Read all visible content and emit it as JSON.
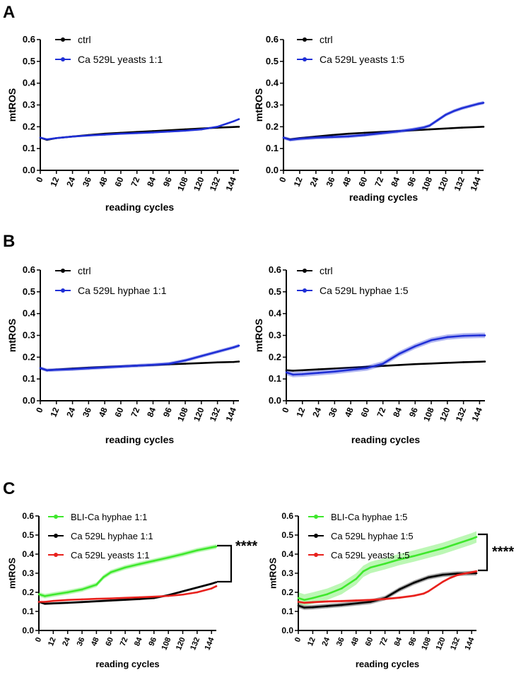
{
  "panels": [
    "A",
    "B",
    "C"
  ],
  "chart_data": [
    {
      "id": "A1",
      "panel": "A",
      "type": "line",
      "ylabel": "mtROS",
      "xlabel": "reading cycles",
      "ylim": [
        0,
        0.6
      ],
      "yticks": [
        "0.0",
        "0.1",
        "0.2",
        "0.3",
        "0.4",
        "0.5",
        "0.6"
      ],
      "xlim": [
        0,
        148
      ],
      "xticks": [
        "0",
        "12",
        "24",
        "36",
        "48",
        "60",
        "72",
        "84",
        "96",
        "108",
        "120",
        "132",
        "144"
      ],
      "series": [
        {
          "name": "ctrl",
          "color": "#000000",
          "x": [
            0,
            5,
            12,
            24,
            36,
            48,
            60,
            72,
            84,
            96,
            108,
            120,
            132,
            144,
            148
          ],
          "y": [
            0.15,
            0.14,
            0.148,
            0.155,
            0.162,
            0.168,
            0.172,
            0.176,
            0.18,
            0.184,
            0.188,
            0.192,
            0.196,
            0.199,
            0.2
          ],
          "err": 0.002
        },
        {
          "name": "Ca 529L yeasts 1:1",
          "color": "#1f2fd6",
          "x": [
            0,
            5,
            12,
            24,
            36,
            48,
            60,
            72,
            84,
            96,
            108,
            120,
            132,
            144,
            148
          ],
          "y": [
            0.15,
            0.142,
            0.148,
            0.155,
            0.16,
            0.164,
            0.168,
            0.171,
            0.174,
            0.178,
            0.182,
            0.188,
            0.2,
            0.225,
            0.235
          ],
          "err": 0.004
        }
      ]
    },
    {
      "id": "A2",
      "panel": "A",
      "type": "line",
      "ylabel": "mtROS",
      "xlabel": "reading cycles",
      "ylim": [
        0,
        0.6
      ],
      "yticks": [
        "0.0",
        "0.1",
        "0.2",
        "0.3",
        "0.4",
        "0.5",
        "0.6"
      ],
      "xlim": [
        0,
        148
      ],
      "xticks": [
        "0",
        "12",
        "24",
        "36",
        "48",
        "60",
        "72",
        "84",
        "96",
        "108",
        "120",
        "132",
        "144"
      ],
      "series": [
        {
          "name": "ctrl",
          "color": "#000000",
          "x": [
            0,
            5,
            12,
            24,
            36,
            48,
            60,
            72,
            84,
            96,
            108,
            120,
            132,
            144,
            148
          ],
          "y": [
            0.15,
            0.142,
            0.148,
            0.155,
            0.162,
            0.168,
            0.172,
            0.176,
            0.18,
            0.184,
            0.188,
            0.192,
            0.196,
            0.199,
            0.2
          ],
          "err": 0.002
        },
        {
          "name": "Ca 529L yeasts 1:5",
          "color": "#1f2fd6",
          "x": [
            0,
            5,
            12,
            24,
            36,
            48,
            60,
            72,
            84,
            96,
            104,
            108,
            114,
            120,
            126,
            132,
            138,
            144,
            148
          ],
          "y": [
            0.15,
            0.14,
            0.145,
            0.15,
            0.153,
            0.156,
            0.162,
            0.17,
            0.178,
            0.188,
            0.197,
            0.205,
            0.23,
            0.255,
            0.272,
            0.285,
            0.295,
            0.305,
            0.31
          ],
          "err": 0.008
        }
      ]
    },
    {
      "id": "B1",
      "panel": "B",
      "type": "line",
      "ylabel": "mtROS",
      "xlabel": "reading cycles",
      "ylim": [
        0,
        0.6
      ],
      "yticks": [
        "0.0",
        "0.1",
        "0.2",
        "0.3",
        "0.4",
        "0.5",
        "0.6"
      ],
      "xlim": [
        0,
        148
      ],
      "xticks": [
        "0",
        "12",
        "24",
        "36",
        "48",
        "60",
        "72",
        "84",
        "96",
        "108",
        "120",
        "132",
        "144"
      ],
      "series": [
        {
          "name": "ctrl",
          "color": "#000000",
          "x": [
            0,
            5,
            12,
            24,
            36,
            48,
            60,
            72,
            84,
            96,
            108,
            120,
            132,
            144,
            148
          ],
          "y": [
            0.15,
            0.14,
            0.143,
            0.148,
            0.152,
            0.155,
            0.158,
            0.161,
            0.164,
            0.167,
            0.17,
            0.173,
            0.176,
            0.178,
            0.18
          ],
          "err": 0.002
        },
        {
          "name": "Ca 529L hyphae 1:1",
          "color": "#1f2fd6",
          "x": [
            0,
            5,
            12,
            24,
            36,
            48,
            60,
            72,
            84,
            96,
            108,
            120,
            132,
            144,
            148
          ],
          "y": [
            0.15,
            0.14,
            0.142,
            0.145,
            0.149,
            0.153,
            0.157,
            0.161,
            0.165,
            0.17,
            0.185,
            0.205,
            0.225,
            0.245,
            0.253
          ],
          "err": 0.008
        }
      ]
    },
    {
      "id": "B2",
      "panel": "B",
      "type": "line",
      "ylabel": "mtROS",
      "xlabel": "reading cycles",
      "ylim": [
        0,
        0.6
      ],
      "yticks": [
        "0.0",
        "0.1",
        "0.2",
        "0.3",
        "0.4",
        "0.5",
        "0.6"
      ],
      "xlim": [
        0,
        148
      ],
      "xticks": [
        "0",
        "12",
        "24",
        "36",
        "48",
        "60",
        "72",
        "84",
        "96",
        "108",
        "120",
        "132",
        "144"
      ],
      "series": [
        {
          "name": "ctrl",
          "color": "#000000",
          "x": [
            0,
            5,
            12,
            24,
            36,
            48,
            60,
            72,
            84,
            96,
            108,
            120,
            132,
            144,
            148
          ],
          "y": [
            0.14,
            0.138,
            0.14,
            0.144,
            0.148,
            0.152,
            0.156,
            0.16,
            0.164,
            0.168,
            0.171,
            0.174,
            0.177,
            0.179,
            0.18
          ],
          "err": 0.003
        },
        {
          "name": "Ca 529L hyphae 1:5",
          "color": "#1f2fd6",
          "x": [
            0,
            5,
            12,
            24,
            36,
            48,
            60,
            72,
            84,
            96,
            108,
            120,
            132,
            144,
            148
          ],
          "y": [
            0.13,
            0.12,
            0.122,
            0.128,
            0.134,
            0.142,
            0.15,
            0.17,
            0.215,
            0.25,
            0.278,
            0.292,
            0.298,
            0.3,
            0.3
          ],
          "err": 0.012
        }
      ]
    },
    {
      "id": "C1",
      "panel": "C",
      "type": "line",
      "ylabel": "mtROS",
      "xlabel": "reading cycles",
      "ylim": [
        0,
        0.6
      ],
      "yticks": [
        "0.0",
        "0.1",
        "0.2",
        "0.3",
        "0.4",
        "0.5",
        "0.6"
      ],
      "xlim": [
        0,
        148
      ],
      "xticks": [
        "0",
        "12",
        "24",
        "36",
        "48",
        "60",
        "72",
        "84",
        "96",
        "108",
        "120",
        "132",
        "144"
      ],
      "significance": "****",
      "series": [
        {
          "name": "BLI-Ca hyphae 1:1",
          "color": "#3ee82c",
          "x": [
            0,
            5,
            12,
            24,
            36,
            48,
            54,
            60,
            72,
            84,
            96,
            108,
            120,
            132,
            144,
            148
          ],
          "y": [
            0.19,
            0.18,
            0.188,
            0.2,
            0.215,
            0.24,
            0.28,
            0.305,
            0.33,
            0.348,
            0.365,
            0.382,
            0.4,
            0.42,
            0.435,
            0.44
          ],
          "err": 0.012
        },
        {
          "name": "Ca 529L hyphae 1:1",
          "color": "#000000",
          "x": [
            0,
            5,
            12,
            24,
            36,
            48,
            60,
            72,
            84,
            96,
            108,
            120,
            132,
            144,
            148
          ],
          "y": [
            0.15,
            0.14,
            0.142,
            0.145,
            0.149,
            0.153,
            0.157,
            0.161,
            0.165,
            0.17,
            0.185,
            0.205,
            0.225,
            0.245,
            0.253
          ],
          "err": 0.006
        },
        {
          "name": "Ca 529L yeasts 1:1",
          "color": "#e8201c",
          "x": [
            0,
            5,
            12,
            24,
            36,
            48,
            60,
            72,
            84,
            96,
            108,
            120,
            132,
            144,
            148
          ],
          "y": [
            0.15,
            0.15,
            0.155,
            0.16,
            0.163,
            0.166,
            0.168,
            0.171,
            0.174,
            0.177,
            0.181,
            0.188,
            0.2,
            0.22,
            0.232
          ],
          "err": 0.003
        }
      ]
    },
    {
      "id": "C2",
      "panel": "C",
      "type": "line",
      "ylabel": "mtROS",
      "xlabel": "reading cycles",
      "ylim": [
        0,
        0.6
      ],
      "yticks": [
        "0.0",
        "0.1",
        "0.2",
        "0.3",
        "0.4",
        "0.5",
        "0.6"
      ],
      "xlim": [
        0,
        148
      ],
      "xticks": [
        "0",
        "12",
        "24",
        "36",
        "48",
        "60",
        "72",
        "84",
        "96",
        "108",
        "120",
        "132",
        "144"
      ],
      "significance": "****",
      "series": [
        {
          "name": "BLI-Ca hyphae 1:5",
          "color": "#3ee82c",
          "x": [
            0,
            5,
            12,
            24,
            36,
            48,
            54,
            60,
            72,
            84,
            96,
            108,
            120,
            132,
            144,
            148
          ],
          "y": [
            0.17,
            0.16,
            0.17,
            0.19,
            0.22,
            0.27,
            0.31,
            0.33,
            0.35,
            0.372,
            0.39,
            0.41,
            0.43,
            0.455,
            0.48,
            0.49
          ],
          "err": 0.03
        },
        {
          "name": "Ca 529L hyphae 1:5",
          "color": "#000000",
          "x": [
            0,
            5,
            12,
            24,
            36,
            48,
            60,
            72,
            84,
            96,
            108,
            120,
            132,
            144,
            148
          ],
          "y": [
            0.13,
            0.12,
            0.122,
            0.128,
            0.134,
            0.142,
            0.15,
            0.17,
            0.215,
            0.25,
            0.278,
            0.292,
            0.298,
            0.3,
            0.3
          ],
          "err": 0.012
        },
        {
          "name": "Ca  529L yeasts 1:5",
          "color": "#e8201c",
          "x": [
            0,
            5,
            12,
            24,
            36,
            48,
            60,
            72,
            84,
            96,
            104,
            108,
            114,
            120,
            126,
            132,
            138,
            144,
            148
          ],
          "y": [
            0.15,
            0.145,
            0.148,
            0.152,
            0.154,
            0.157,
            0.16,
            0.165,
            0.172,
            0.182,
            0.193,
            0.205,
            0.23,
            0.255,
            0.275,
            0.29,
            0.298,
            0.305,
            0.31
          ],
          "err": 0.006
        }
      ]
    }
  ]
}
